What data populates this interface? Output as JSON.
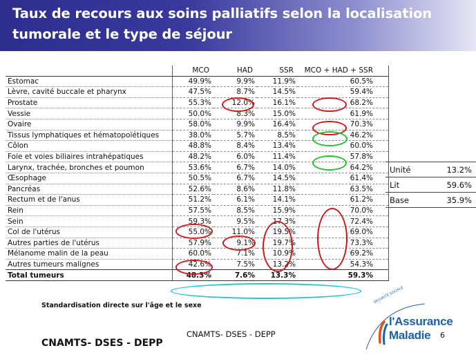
{
  "title": {
    "line1": "Taux de recours aux soins palliatifs selon la localisation",
    "line2": "tumorale et le type de séjour"
  },
  "table": {
    "columns": [
      "MCO",
      "HAD",
      "SSR",
      "MCO + HAD + SSR"
    ],
    "rows": [
      {
        "label": "Estomac",
        "mco": "49.9%",
        "had": "9.9%",
        "ssr": "11.9%",
        "total": "60.5%"
      },
      {
        "label": "Lèvre, cavité buccale et pharynx",
        "mco": "47.5%",
        "had": "8.7%",
        "ssr": "14.5%",
        "total": "59.4%"
      },
      {
        "label": "Prostate",
        "mco": "55.3%",
        "had": "12.0%",
        "ssr": "16.1%",
        "total": "68.2%"
      },
      {
        "label": "Vessie",
        "mco": "50.0%",
        "had": "8.3%",
        "ssr": "15.0%",
        "total": "61.9%"
      },
      {
        "label": "Ovaire",
        "mco": "58.0%",
        "had": "9.9%",
        "ssr": "16.4%",
        "total": "70.3%"
      },
      {
        "label": "Tissus lymphatiques et hématopoïétiques",
        "mco": "38.0%",
        "had": "5.7%",
        "ssr": "8.5%",
        "total": "46.2%"
      },
      {
        "label": "Côlon",
        "mco": "48.8%",
        "had": "8.4%",
        "ssr": "13.4%",
        "total": "60.0%"
      },
      {
        "label": "Foie et voies biliaires intrahépatiques",
        "mco": "48.2%",
        "had": "6.0%",
        "ssr": "11.4%",
        "total": "57.8%"
      },
      {
        "label": "Larynx, trachée, bronches et poumon",
        "mco": "53.6%",
        "had": "6.7%",
        "ssr": "14.0%",
        "total": "64.2%"
      },
      {
        "label": "Œsophage",
        "mco": "50.5%",
        "had": "6.7%",
        "ssr": "14.5%",
        "total": "61.4%"
      },
      {
        "label": "Pancréas",
        "mco": "52.6%",
        "had": "8.6%",
        "ssr": "11.8%",
        "total": "63.5%"
      },
      {
        "label": "Rectum et de l'anus",
        "mco": "51.2%",
        "had": "6.1%",
        "ssr": "14.1%",
        "total": "61.2%"
      },
      {
        "label": "Rein",
        "mco": "57.5%",
        "had": "8.5%",
        "ssr": "15.9%",
        "total": "70.0%"
      },
      {
        "label": "Sein",
        "mco": "59.3%",
        "had": "9.5%",
        "ssr": "17.3%",
        "total": "72.4%"
      },
      {
        "label": "Col de l'utérus",
        "mco": "55.0%",
        "had": "11.0%",
        "ssr": "19.5%",
        "total": "69.0%"
      },
      {
        "label": "Autres parties de l'utérus",
        "mco": "57.9%",
        "had": "9.1%",
        "ssr": "19.7%",
        "total": "73.3%"
      },
      {
        "label": "Mélanome malin de la peau",
        "mco": "60.0%",
        "had": "7.1%",
        "ssr": "10.9%",
        "total": "69.2%"
      },
      {
        "label": "Autres tumeurs malignes",
        "mco": "42.6%",
        "had": "7.5%",
        "ssr": "13.2%",
        "total": "54.3%"
      }
    ],
    "total": {
      "label": "Total tumeurs",
      "mco": "48.3%",
      "had": "7.6%",
      "ssr": "13.3%",
      "total": "59.3%"
    }
  },
  "side_table": {
    "rows": [
      {
        "label": "Unité",
        "value": "13.2%"
      },
      {
        "label": "Lit",
        "value": "59.6%"
      },
      {
        "label": "Base",
        "value": "35.9%"
      }
    ]
  },
  "footnote": "Standardisation directe sur l'âge et le sexe",
  "footer": {
    "center": "CNAMTS- DSES - DEPP",
    "left": "CNAMTS- DSES - DEPP",
    "page_number": "6"
  },
  "logo": {
    "line1": "l'Assurance",
    "line2": "Maladie",
    "small": "SÉCURITÉ SOCIALE"
  },
  "colors": {
    "title_bar": "#2d2d8e",
    "highlight_red": "#d01818",
    "highlight_green": "#22c02a",
    "highlight_cyan": "#19c9d6",
    "logo_blue": "#1d5fa8"
  }
}
